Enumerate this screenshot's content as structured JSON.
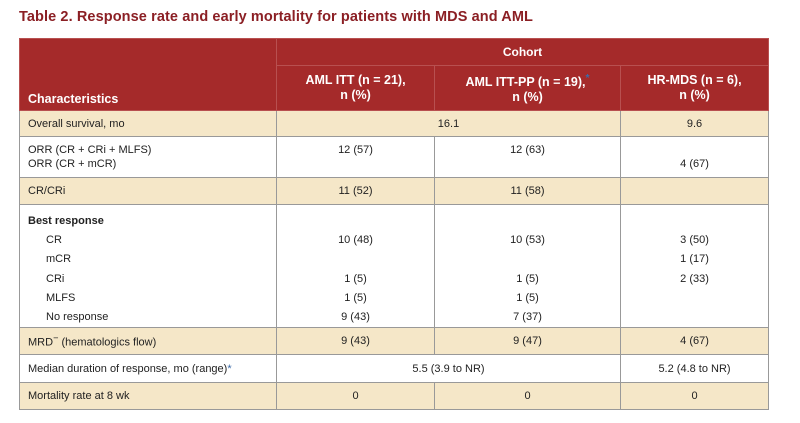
{
  "title": "Table 2. Response rate and early mortality for patients with MDS and AML",
  "header": {
    "cohort": "Cohort",
    "characteristics": "Characteristics",
    "col1_line1": "AML ITT (n = 21),",
    "col1_line2": "n (%)",
    "col2_line1": "AML ITT-PP (n = 19),",
    "col2_asterisk": "*",
    "col2_line2": "n (%)",
    "col3_line1": "HR-MDS (n = 6),",
    "col3_line2": "n (%)"
  },
  "rows": {
    "os": {
      "label": "Overall survival, mo",
      "aml": "16.1",
      "mds": "9.6"
    },
    "orr": {
      "label1": "ORR (CR + CRi + MLFS)",
      "label2": "ORR (CR + mCR)",
      "aml_itt": "12 (57)",
      "aml_pp": "12 (63)",
      "mds": "4 (67)"
    },
    "crcri": {
      "label": "CR/CRi",
      "aml_itt": "11 (52)",
      "aml_pp": "11 (58)",
      "mds": ""
    },
    "best": {
      "heading": "Best response",
      "items": [
        {
          "label": "CR",
          "aml_itt": "10 (48)",
          "aml_pp": "10 (53)",
          "mds": "3 (50)"
        },
        {
          "label": "mCR",
          "aml_itt": "",
          "aml_pp": "",
          "mds": "1 (17)"
        },
        {
          "label": "CRi",
          "aml_itt": "1 (5)",
          "aml_pp": "1 (5)",
          "mds": "2 (33)"
        },
        {
          "label": "MLFS",
          "aml_itt": "1 (5)",
          "aml_pp": "1 (5)",
          "mds": ""
        },
        {
          "label": "No response",
          "aml_itt": "9 (43)",
          "aml_pp": "7 (37)",
          "mds": ""
        }
      ]
    },
    "mrd": {
      "label_prefix": "MRD",
      "label_sup": "−",
      "label_suffix": " (hematologics flow)",
      "aml_itt": "9 (43)",
      "aml_pp": "9 (47)",
      "mds": "4 (67)"
    },
    "median": {
      "label": "Median duration of response, mo (range)",
      "asterisk": "*",
      "aml": "5.5 (3.9 to NR)",
      "mds": "5.2 (4.8 to NR)"
    },
    "mortality": {
      "label": "Mortality rate at 8 wk",
      "aml_itt": "0",
      "aml_pp": "0",
      "mds": "0"
    }
  }
}
